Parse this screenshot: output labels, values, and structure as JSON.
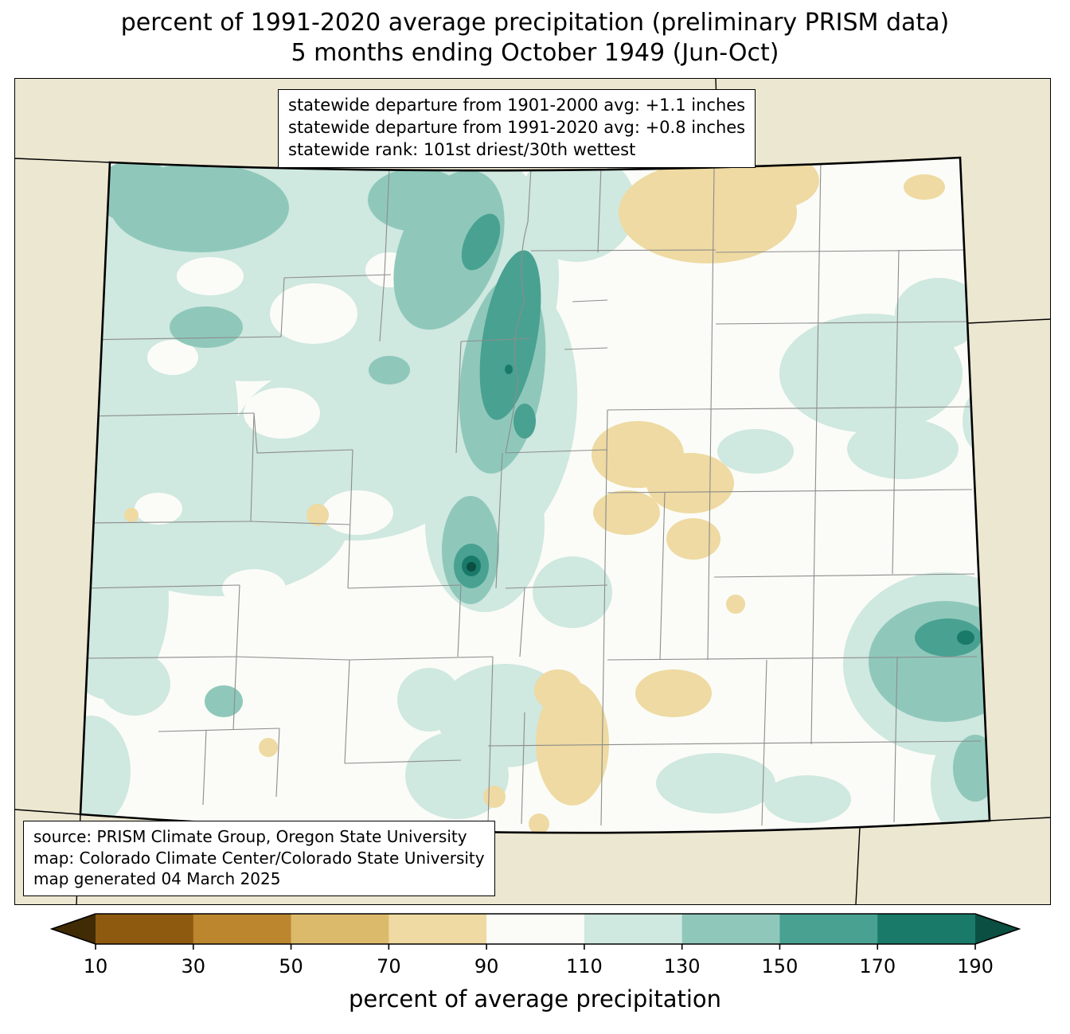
{
  "title": {
    "line1": "percent of 1991-2020 average precipitation (preliminary PRISM data)",
    "line2": "5 months ending October 1949 (Jun-Oct)"
  },
  "stats_box": {
    "line1": "statewide departure from 1901-2000 avg: +1.1 inches",
    "line2": "statewide departure from 1991-2020 avg: +0.8 inches",
    "line3": "statewide rank: 101st driest/30th wettest"
  },
  "source_box": {
    "line1": "source: PRISM Climate Group, Oregon State University",
    "line2": "map: Colorado Climate Center/Colorado State University",
    "line3": "map generated 04 March 2025"
  },
  "colorbar": {
    "label": "percent of average precipitation",
    "ticks": [
      "10",
      "30",
      "50",
      "70",
      "90",
      "110",
      "130",
      "150",
      "170",
      "190"
    ],
    "arrow_left_color": "#402b04",
    "arrow_right_color": "#0a4f42",
    "segment_colors": [
      "#8d5a10",
      "#bc862e",
      "#dcba6c",
      "#eedaa2",
      "#fbfcf7",
      "#cfe8e0",
      "#8fc8bb",
      "#49a191",
      "#1a7a69"
    ]
  },
  "map": {
    "background_color": "#ece7d1",
    "county_line_color": "#8c8c8c",
    "state_line_color": "#000000",
    "classes": {
      "tan_70_90": "#eedaa2",
      "white_90_110": "#fbfcf7",
      "teal_110_130": "#cfe8e0",
      "teal_130_150": "#8fc8bb",
      "teal_150_170": "#49a191",
      "teal_170_190": "#1a7a69",
      "teal_dark": "#0a4f42"
    }
  }
}
